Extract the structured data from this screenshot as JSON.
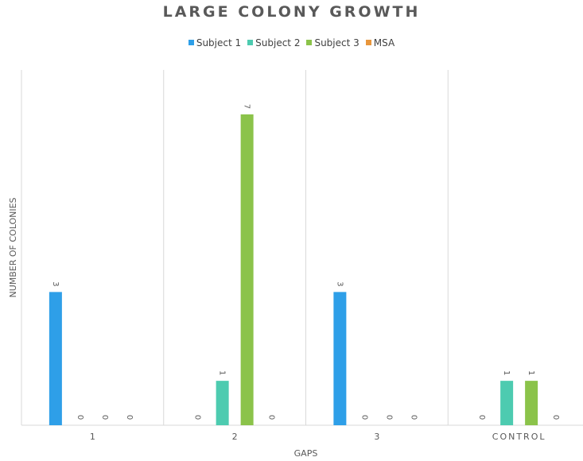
{
  "chart_data": {
    "type": "bar",
    "title": "LARGE COLONY GROWTH",
    "xlabel": "GAPS",
    "ylabel": "NUMBER OF COLONIES",
    "categories": [
      "1",
      "2",
      "3",
      "CONTROL"
    ],
    "series": [
      {
        "name": "Subject 1",
        "color": "#2E9FE8",
        "values": [
          3,
          0,
          3,
          0
        ]
      },
      {
        "name": "Subject 2",
        "color": "#4DCBB0",
        "values": [
          0,
          1,
          0,
          1
        ]
      },
      {
        "name": "Subject 3",
        "color": "#8BC34A",
        "values": [
          0,
          7,
          0,
          1
        ]
      },
      {
        "name": "MSA",
        "color": "#E8963C",
        "values": [
          0,
          0,
          0,
          0
        ]
      }
    ],
    "ylim": [
      0,
      8
    ],
    "grid": "vertical category separators",
    "legend": "top-center",
    "data_labels": true
  }
}
